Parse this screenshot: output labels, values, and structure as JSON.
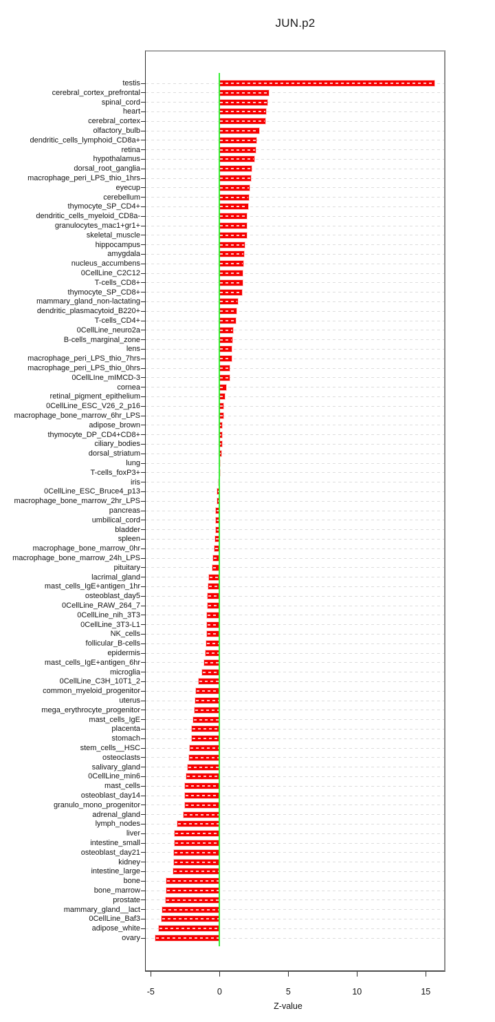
{
  "chart_data": {
    "type": "bar",
    "orientation": "horizontal",
    "title": "JUN.p2",
    "xlabel": "Z-value",
    "ylabel": "",
    "xlim": [
      -5.4,
      16.4
    ],
    "grid": "dashed-horizontal-per-category",
    "zero_line": true,
    "x_ticks": [
      -5,
      0,
      5,
      10,
      15
    ],
    "x_tick_labels": [
      "-5",
      "0",
      "5",
      "10",
      "15"
    ],
    "colors": {
      "bar": "#f50000",
      "zero_line": "#33ee33",
      "grid": "#dcdcdc",
      "axis": "#2b2b2b"
    },
    "categories": [
      "testis",
      "cerebral_cortex_prefrontal",
      "spinal_cord",
      "heart",
      "cerebral_cortex",
      "olfactory_bulb",
      "dendritic_cells_lymphoid_CD8a+",
      "retina",
      "hypothalamus",
      "dorsal_root_ganglia",
      "macrophage_peri_LPS_thio_1hrs",
      "eyecup",
      "cerebellum",
      "thymocyte_SP_CD4+",
      "dendritic_cells_myeloid_CD8a-",
      "granulocytes_mac1+gr1+",
      "skeletal_muscle",
      "hippocampus",
      "amygdala",
      "nucleus_accumbens",
      "0CellLine_C2C12",
      "T-cells_CD8+",
      "thymocyte_SP_CD8+",
      "mammary_gland_non-lactating",
      "dendritic_plasmacytoid_B220+",
      "T-cells_CD4+",
      "0CellLine_neuro2a",
      "B-cells_marginal_zone",
      "lens",
      "macrophage_peri_LPS_thio_7hrs",
      "macrophage_peri_LPS_thio_0hrs",
      "0CellLIne_mIMCD-3",
      "cornea",
      "retinal_pigment_epithelium",
      "0CellLine_ESC_V26_2_p16",
      "macrophage_bone_marrow_6hr_LPS",
      "adipose_brown",
      "thymocyte_DP_CD4+CD8+",
      "ciliary_bodies",
      "dorsal_striatum",
      "lung",
      "T-cells_foxP3+",
      "iris",
      "0CellLine_ESC_Bruce4_p13",
      "macrophage_bone_marrow_2hr_LPS",
      "pancreas",
      "umbilical_cord",
      "bladder",
      "spleen",
      "macrophage_bone_marrow_0hr",
      "macrophage_bone_marrow_24h_LPS",
      "pituitary",
      "lacrimal_gland",
      "mast_cells_IgE+antigen_1hr",
      "osteoblast_day5",
      "0CellLine_RAW_264_7",
      "0CellLine_nih_3T3",
      "0CellLine_3T3-L1",
      "NK_cells",
      "follicular_B-cells",
      "epidermis",
      "mast_cells_IgE+antigen_6hr",
      "microglia",
      "0CellLine_C3H_10T1_2",
      "common_myeloid_progenitor",
      "uterus",
      "mega_erythrocyte_progenitor",
      "mast_cells_IgE",
      "placenta",
      "stomach",
      "stem_cells__HSC",
      "osteoclasts",
      "salivary_gland",
      "0CellLine_min6",
      "mast_cells",
      "osteoblast_day14",
      "granulo_mono_progenitor",
      "adrenal_gland",
      "lymph_nodes",
      "liver",
      "intestine_small",
      "osteoblast_day21",
      "kidney",
      "intestine_large",
      "bone",
      "bone_marrow",
      "prostate",
      "mammary_gland__lact",
      "0CellLine_Baf3",
      "adipose_white",
      "ovary"
    ],
    "values": [
      15.62,
      3.57,
      3.48,
      3.39,
      3.32,
      2.89,
      2.68,
      2.62,
      2.52,
      2.32,
      2.3,
      2.17,
      2.16,
      2.07,
      2.0,
      1.99,
      1.97,
      1.83,
      1.8,
      1.75,
      1.71,
      1.7,
      1.62,
      1.32,
      1.25,
      1.2,
      0.99,
      0.92,
      0.89,
      0.88,
      0.75,
      0.74,
      0.5,
      0.37,
      0.31,
      0.3,
      0.2,
      0.19,
      0.17,
      0.14,
      0.04,
      0.01,
      -0.08,
      -0.15,
      -0.18,
      -0.25,
      -0.27,
      -0.28,
      -0.31,
      -0.38,
      -0.46,
      -0.5,
      -0.75,
      -0.83,
      -0.85,
      -0.86,
      -0.92,
      -0.93,
      -0.94,
      -0.95,
      -1.03,
      -1.1,
      -1.26,
      -1.53,
      -1.7,
      -1.78,
      -1.8,
      -1.93,
      -2.02,
      -2.03,
      -2.17,
      -2.23,
      -2.32,
      -2.42,
      -2.5,
      -2.51,
      -2.52,
      -2.6,
      -3.05,
      -3.27,
      -3.28,
      -3.3,
      -3.32,
      -3.37,
      -3.85,
      -3.87,
      -3.9,
      -4.18,
      -4.2,
      -4.4,
      -4.65
    ]
  }
}
